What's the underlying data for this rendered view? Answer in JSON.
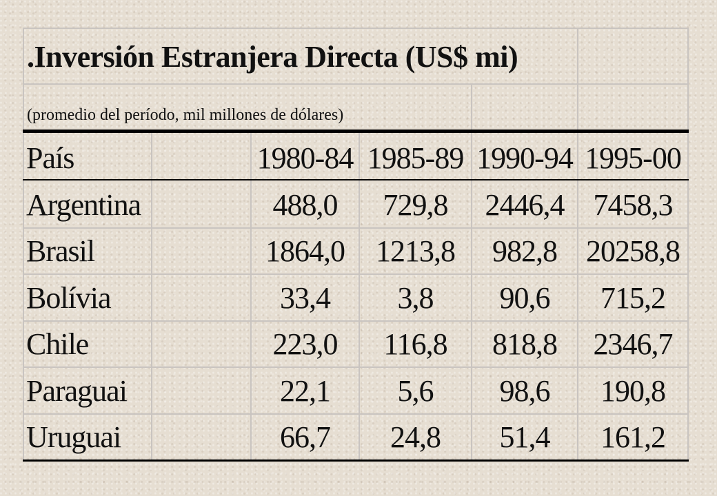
{
  "table": {
    "title": ".Inversión Estranjera Directa (US$ mi)",
    "subtitle": "(promedio del período, mil millones de dólares)",
    "header": [
      "País",
      "1980-84",
      "1985-89",
      "1990-94",
      "1995-00"
    ],
    "rows": [
      {
        "country": "Argentina",
        "values": [
          "488,0",
          "729,8",
          "2446,4",
          "7458,3"
        ]
      },
      {
        "country": "Brasil",
        "values": [
          "1864,0",
          "1213,8",
          "982,8",
          "20258,8"
        ]
      },
      {
        "country": "Bolívia",
        "values": [
          "33,4",
          "3,8",
          "90,6",
          "715,2"
        ]
      },
      {
        "country": "Chile",
        "values": [
          "223,0",
          "116,8",
          "818,8",
          "2346,7"
        ]
      },
      {
        "country": "Paraguai",
        "values": [
          "22,1",
          "5,6",
          "98,6",
          "190,8"
        ]
      },
      {
        "country": "Uruguai",
        "values": [
          "66,7",
          "24,8",
          "51,4",
          "161,2"
        ]
      }
    ]
  }
}
